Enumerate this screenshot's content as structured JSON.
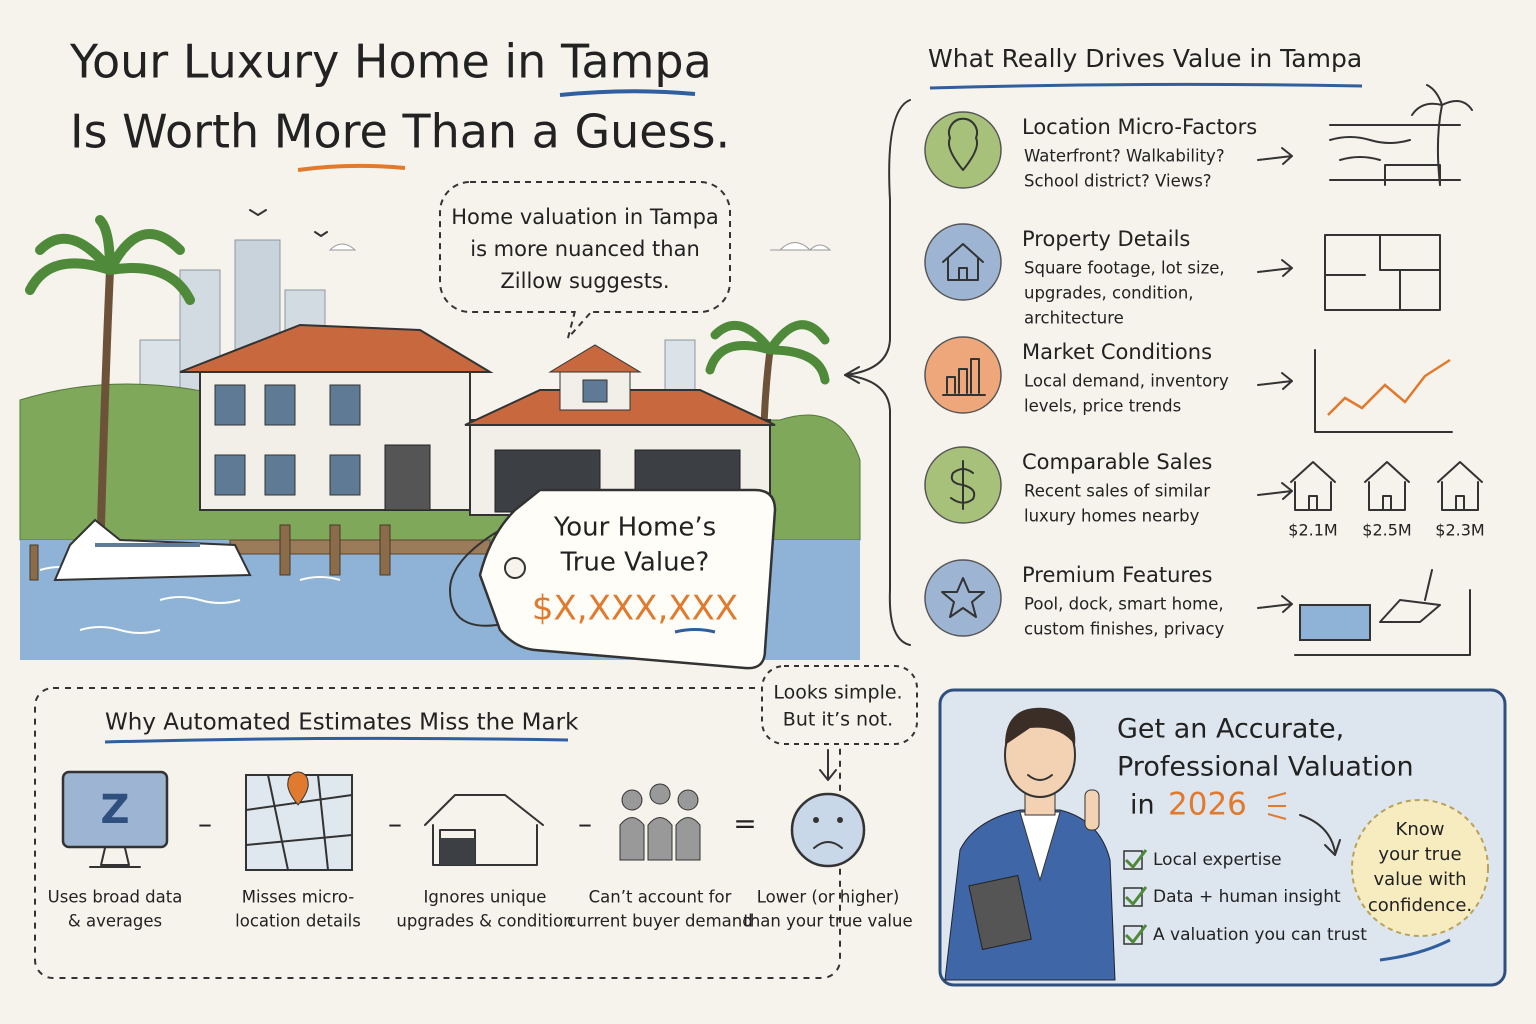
{
  "header": {
    "title_lines": [
      "Your Luxury Home in Tampa",
      "Is Worth More Than a Guess."
    ]
  },
  "speech_bubble": {
    "lines": [
      "Home valuation in Tampa",
      "is more nuanced than",
      "Zillow suggests."
    ]
  },
  "price_tag": {
    "lines": [
      "Your Home’s",
      "True Value?"
    ],
    "price": "$X,XXX,XXX"
  },
  "value_drivers": {
    "title": "What Really Drives Value in Tampa",
    "items": [
      {
        "heading": "Location Micro-Factors",
        "lines": [
          "Waterfront? Walkability?",
          "School district? Views?"
        ]
      },
      {
        "heading": "Property Details",
        "lines": [
          "Square footage, lot size,",
          "upgrades, condition,",
          "architecture"
        ]
      },
      {
        "heading": "Market Conditions",
        "lines": [
          "Local demand, inventory",
          "levels, price trends"
        ]
      },
      {
        "heading": "Comparable Sales",
        "lines": [
          "Recent sales of similar",
          "luxury homes nearby"
        ]
      },
      {
        "heading": "Premium Features",
        "lines": [
          "Pool, dock, smart home,",
          "custom finishes, privacy"
        ]
      }
    ],
    "comparable_prices": [
      "$2.1M",
      "$2.5M",
      "$2.3M"
    ]
  },
  "automated_estimates": {
    "title": "Why Automated Estimates Miss the Mark",
    "callout_lines": [
      "Looks simple.",
      "But it’s not."
    ],
    "icon_text": "Z",
    "steps": [
      {
        "lines": [
          "Uses broad data",
          "& averages"
        ]
      },
      {
        "lines": [
          "Misses micro-",
          "location details"
        ]
      },
      {
        "lines": [
          "Ignores unique",
          "upgrades & condition"
        ]
      },
      {
        "lines": [
          "Can’t account for",
          "current buyer demand"
        ]
      },
      {
        "lines": [
          "Lower (or higher)",
          "than your true value"
        ]
      }
    ],
    "operators": [
      "–",
      "–",
      "–",
      "="
    ]
  },
  "cta": {
    "title_lines": [
      "Get an Accurate,",
      "Professional Valuation",
      "in"
    ],
    "year": "2026",
    "checklist": [
      "Local expertise",
      "Data + human insight",
      "A valuation you can trust"
    ],
    "badge_lines": [
      "Know",
      "your true",
      "value with",
      "confidence."
    ]
  }
}
